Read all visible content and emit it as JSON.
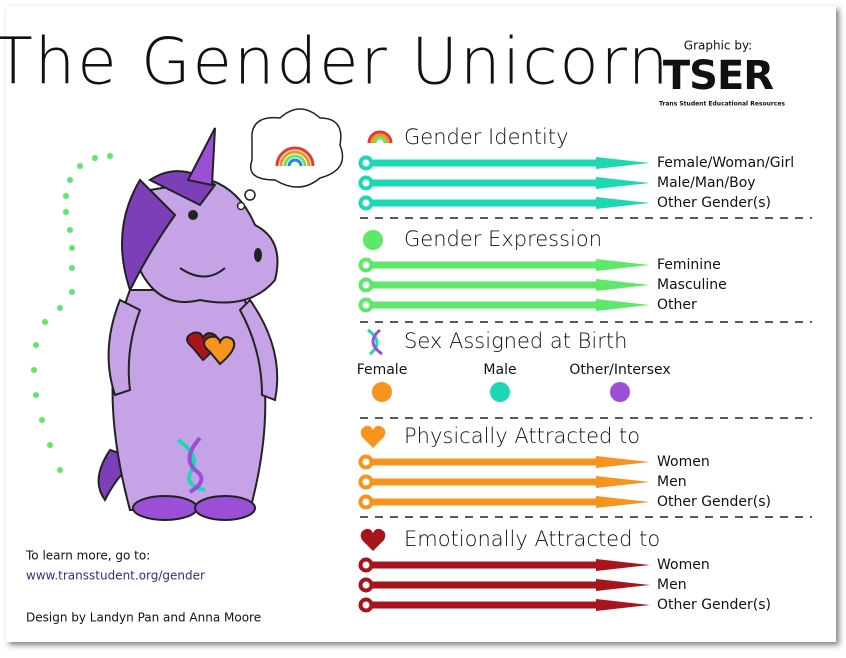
{
  "title": "The Gender Unicorn",
  "credit": {
    "label": "Graphic by:",
    "logo": "TSER",
    "org": "Trans Student Educational Resources"
  },
  "sections": [
    {
      "title": "Gender Identity",
      "color": "#1ed8b4",
      "items": [
        "Female/Woman/Girl",
        "Male/Man/Boy",
        "Other Gender(s)"
      ]
    },
    {
      "title": "Gender Expression",
      "color": "#5ee86a",
      "items": [
        "Feminine",
        "Masculine",
        "Other"
      ]
    },
    {
      "title": "Sex Assigned at Birth",
      "options": [
        {
          "label": "Female",
          "color": "#f7941d"
        },
        {
          "label": "Male",
          "color": "#1ed8b4"
        },
        {
          "label": "Other/Intersex",
          "color": "#9b4fd6"
        }
      ]
    },
    {
      "title": "Physically Attracted to",
      "color": "#f7941d",
      "items": [
        "Women",
        "Men",
        "Other Gender(s)"
      ]
    },
    {
      "title": "Emotionally Attracted to",
      "color": "#a8141c",
      "items": [
        "Women",
        "Men",
        "Other Gender(s)"
      ]
    }
  ],
  "footer": {
    "learn": "To learn more, go to:",
    "url": "www.transstudent.org/gender",
    "design": "Design by Landyn Pan and Anna Moore"
  }
}
